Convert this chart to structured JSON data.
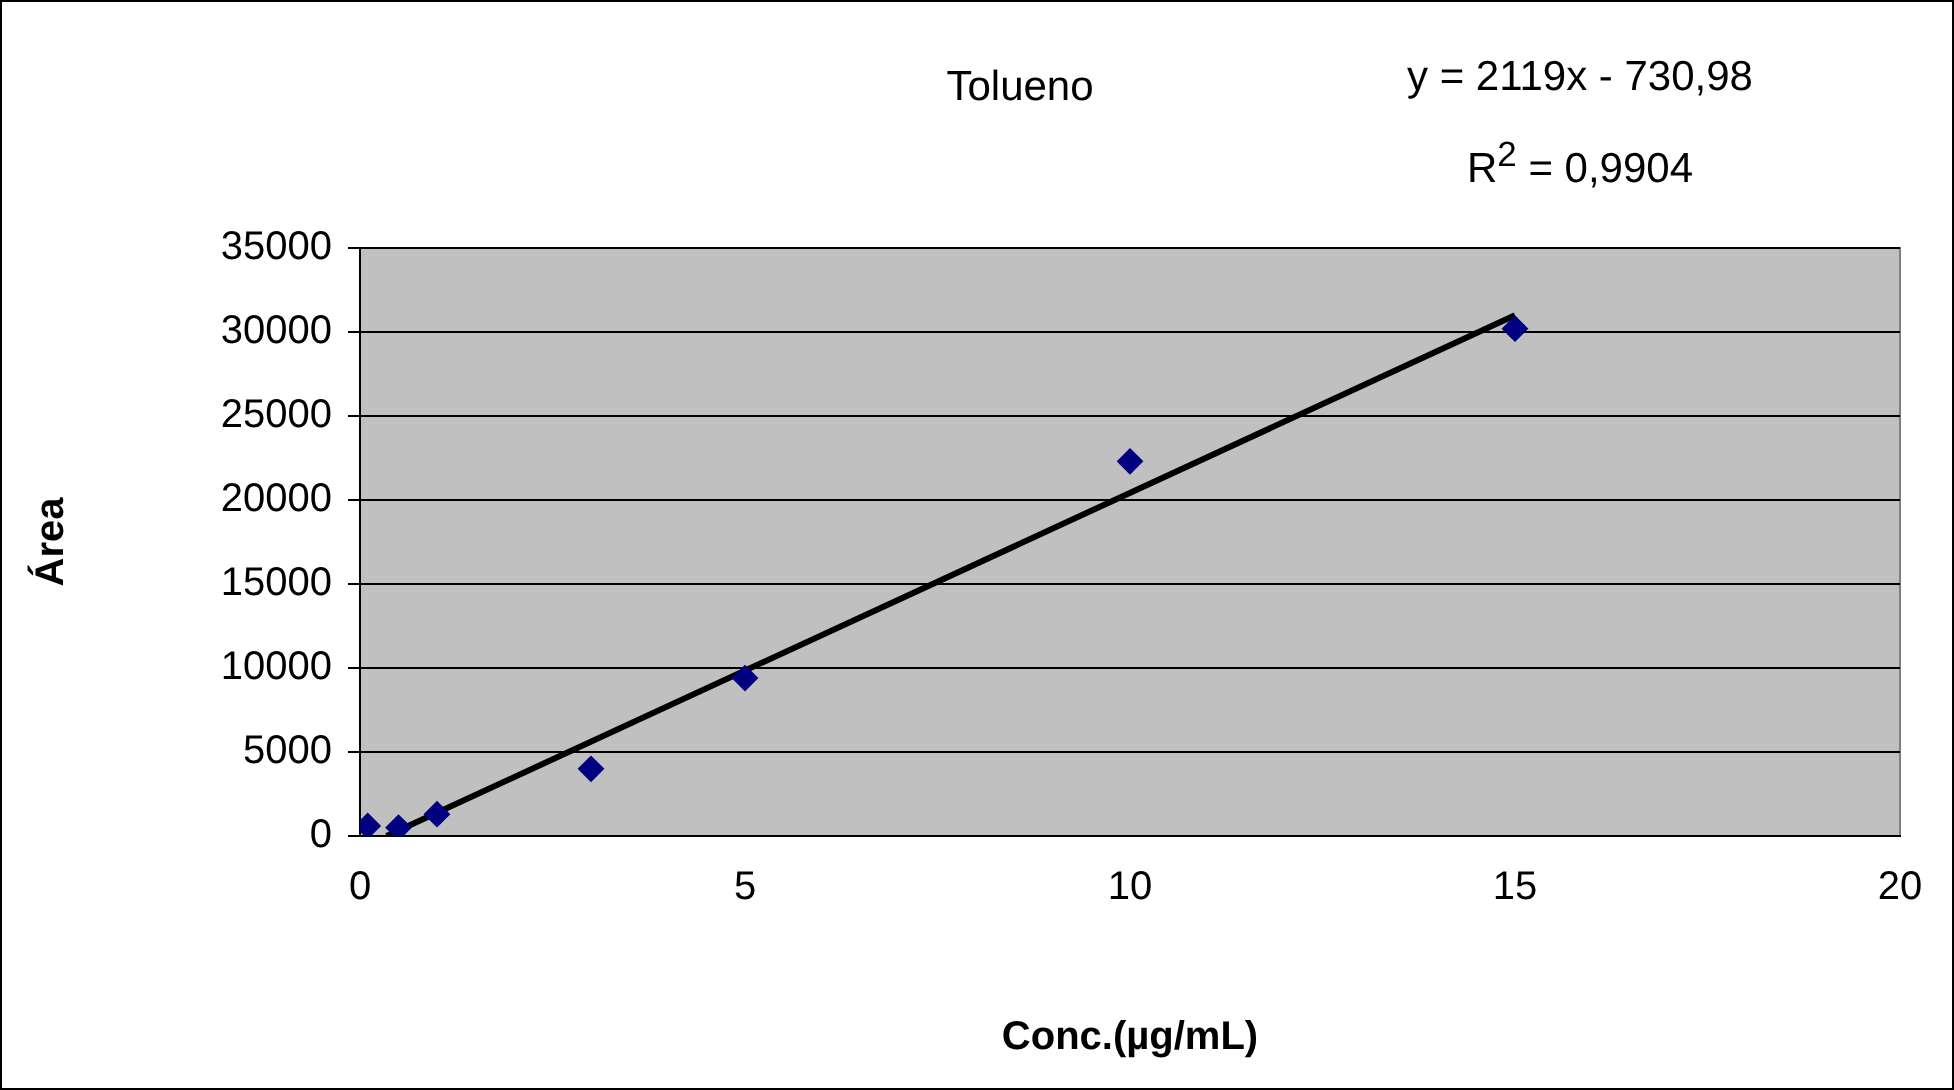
{
  "chart_data": {
    "type": "scatter",
    "title": "Tolueno",
    "xlabel": "Conc.(µg/mL)",
    "ylabel": "Área",
    "series": [
      {
        "color": "#000080",
        "marker": "diamond",
        "x": [
          0.1,
          0.5,
          1,
          3,
          5,
          10,
          15
        ],
        "values": [
          600,
          500,
          1300,
          4000,
          9400,
          22300,
          30200
        ]
      },
      {
        "type": "line",
        "color": "#000000",
        "marker": "none",
        "line_style": "solid",
        "x": [
          0.345,
          15
        ],
        "values": [
          0,
          31000
        ]
      }
    ],
    "xlim": [
      0,
      20
    ],
    "xticks": [
      0,
      5,
      10,
      15,
      20
    ],
    "ylim": [
      0,
      35000
    ],
    "yticks": [
      0,
      5000,
      10000,
      15000,
      20000,
      25000,
      30000,
      35000
    ],
    "grid": "y",
    "legend": false,
    "annotations": [
      "y = 2119x - 730,98",
      "R$^{2}$ = 0,9904"
    ]
  }
}
